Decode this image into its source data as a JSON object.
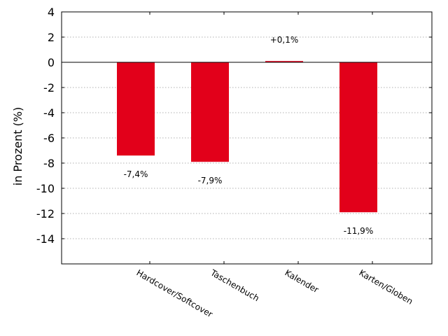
{
  "chart_data": {
    "type": "bar",
    "title": "",
    "xlabel": "",
    "ylabel": "in Prozent (%)",
    "categories": [
      "Hardcover/Softcover",
      "Taschenbuch",
      "Kalender",
      "Karten/Globen"
    ],
    "values": [
      -7.4,
      -7.9,
      0.1,
      -11.9
    ],
    "data_labels": [
      "-7,4%",
      "-7,9%",
      "+0,1%",
      "-11,9%"
    ],
    "ylim": [
      -16,
      4
    ],
    "yticks": [
      4,
      2,
      0,
      -2,
      -4,
      -6,
      -8,
      -10,
      -12,
      -14
    ],
    "grid": "horizontal dotted",
    "bar_color": "#e2001a"
  }
}
